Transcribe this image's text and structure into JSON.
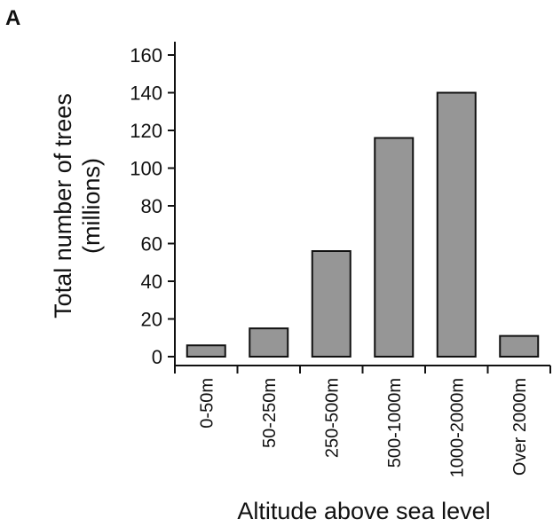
{
  "panel_label": "A",
  "chart_data": {
    "type": "bar",
    "categories": [
      "0-50m",
      "50-250m",
      "250-500m",
      "500-1000m",
      "1000-2000m",
      "Over 2000m"
    ],
    "values": [
      6,
      15,
      56,
      116,
      140,
      11
    ],
    "xlabel": "Altitude above sea level",
    "ylabel_line1": "Total number of trees",
    "ylabel_line2": "(millions)",
    "ylim": [
      0,
      160
    ],
    "yticks": [
      0,
      20,
      40,
      60,
      80,
      100,
      120,
      140,
      160
    ],
    "grid": false,
    "bar_color": "#969696",
    "bar_edge_color": "#111111"
  }
}
